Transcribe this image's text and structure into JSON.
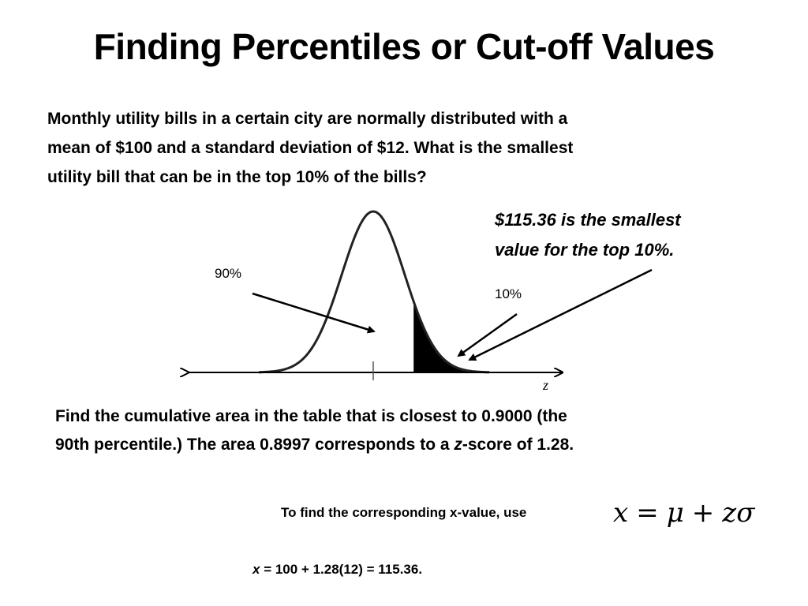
{
  "title": "Finding Percentiles or Cut-off Values",
  "problem": {
    "line1": "Monthly utility bills in a certain city are normally distributed with a",
    "line2": "mean of $100 and a standard deviation of $12. What is the smallest",
    "line3": "utility bill that can be in the top 10% of the bills?"
  },
  "answer_callout": {
    "line1": "$115.36 is the smallest",
    "line2": "value for the top 10%."
  },
  "figure": {
    "left_area_label": "90%",
    "right_area_label": "10%",
    "axis_label": "z"
  },
  "explanation": {
    "line1": "Find the cumulative area in the table that is closest to 0.9000 (the",
    "line2_part1": "90th percentile.) The area  0.8997 corresponds to a ",
    "line2_var": "z",
    "line2_part2": "-score of 1.28."
  },
  "formula": {
    "intro": "To find the corresponding x-value, use",
    "lhs": "x",
    "eq": "=",
    "mu": "μ",
    "plus": "+",
    "rhs": "zσ"
  },
  "calculation": {
    "var": "x",
    "expression": " = 100 + 1.28(12) = 115.36."
  }
}
